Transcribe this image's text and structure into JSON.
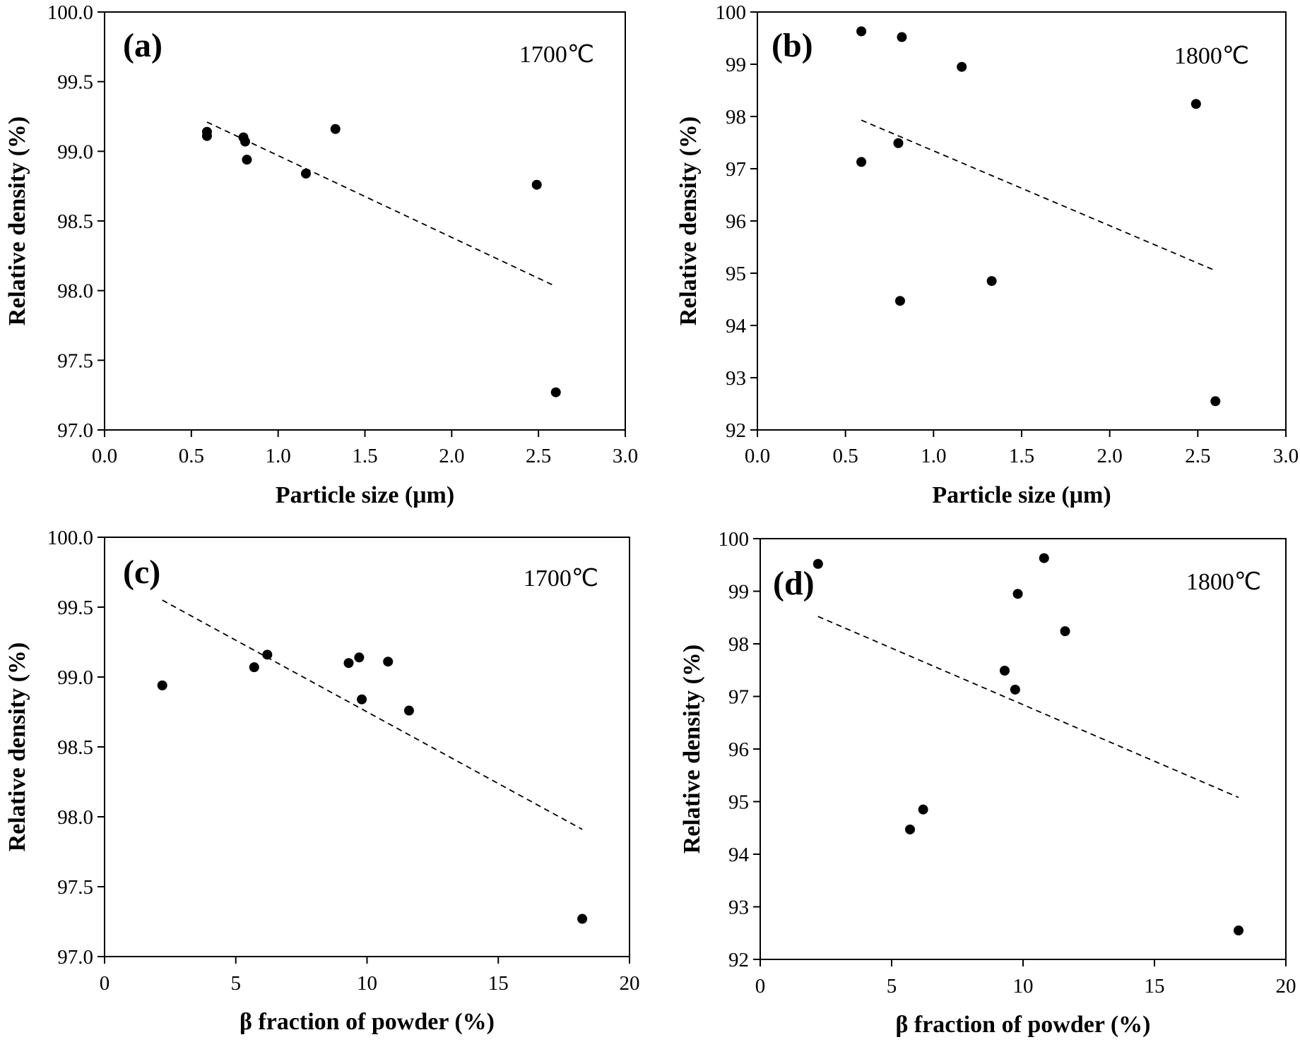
{
  "chart_data": [
    {
      "type": "scatter",
      "panel_label": "(a)",
      "annotation": "1700℃",
      "xlabel": "Particle size (μm)",
      "ylabel": "Relative density (%)",
      "xlim": [
        0,
        3
      ],
      "ylim": [
        97,
        100
      ],
      "xticks": [
        0,
        0.5,
        1,
        1.5,
        2,
        2.5,
        3
      ],
      "xtick_labels": [
        "0.0",
        "0.5",
        "1.0",
        "1.5",
        "2.0",
        "2.5",
        "3.0"
      ],
      "yticks": [
        97,
        97.5,
        98,
        98.5,
        99,
        99.5,
        100
      ],
      "ytick_labels": [
        "97.0",
        "97.5",
        "98.0",
        "98.5",
        "99.0",
        "99.5",
        "100.0"
      ],
      "points": [
        {
          "x": 0.59,
          "y": 99.14
        },
        {
          "x": 0.59,
          "y": 99.11
        },
        {
          "x": 0.8,
          "y": 99.1
        },
        {
          "x": 0.81,
          "y": 99.07
        },
        {
          "x": 0.82,
          "y": 98.94
        },
        {
          "x": 1.16,
          "y": 98.84
        },
        {
          "x": 1.33,
          "y": 99.16
        },
        {
          "x": 2.49,
          "y": 98.76
        },
        {
          "x": 2.6,
          "y": 97.27
        }
      ],
      "trendline": {
        "x": [
          0.59,
          2.6
        ],
        "y": [
          99.21,
          98.03
        ],
        "style": "dashed"
      }
    },
    {
      "type": "scatter",
      "panel_label": "(b)",
      "annotation": "1800℃",
      "xlabel": "Particle size (μm)",
      "ylabel": "Relative density (%)",
      "xlim": [
        0,
        3
      ],
      "ylim": [
        92,
        100
      ],
      "xticks": [
        0,
        0.5,
        1,
        1.5,
        2,
        2.5,
        3
      ],
      "xtick_labels": [
        "0.0",
        "0.5",
        "1.0",
        "1.5",
        "2.0",
        "2.5",
        "3.0"
      ],
      "yticks": [
        92,
        93,
        94,
        95,
        96,
        97,
        98,
        99,
        100
      ],
      "ytick_labels": [
        "92",
        "93",
        "94",
        "95",
        "96",
        "97",
        "98",
        "99",
        "100"
      ],
      "points": [
        {
          "x": 0.59,
          "y": 99.63
        },
        {
          "x": 0.59,
          "y": 97.13
        },
        {
          "x": 0.8,
          "y": 97.49
        },
        {
          "x": 0.81,
          "y": 94.47
        },
        {
          "x": 0.82,
          "y": 99.52
        },
        {
          "x": 1.16,
          "y": 98.95
        },
        {
          "x": 1.33,
          "y": 94.85
        },
        {
          "x": 2.49,
          "y": 98.24
        },
        {
          "x": 2.6,
          "y": 92.55
        }
      ],
      "trendline": {
        "x": [
          0.59,
          2.6
        ],
        "y": [
          97.93,
          95.05
        ],
        "style": "dashed"
      }
    },
    {
      "type": "scatter",
      "panel_label": "(c)",
      "annotation": "1700℃",
      "xlabel": "β fraction of powder (%)",
      "ylabel": "Relative density (%)",
      "xlim": [
        0,
        20
      ],
      "ylim": [
        97,
        100
      ],
      "xticks": [
        0,
        5,
        10,
        15,
        20
      ],
      "xtick_labels": [
        "0",
        "5",
        "10",
        "15",
        "20"
      ],
      "yticks": [
        97,
        97.5,
        98,
        98.5,
        99,
        99.5,
        100
      ],
      "ytick_labels": [
        "97.0",
        "97.5",
        "98.0",
        "98.5",
        "99.0",
        "99.5",
        "100.0"
      ],
      "points": [
        {
          "x": 2.2,
          "y": 98.94
        },
        {
          "x": 5.7,
          "y": 99.07
        },
        {
          "x": 6.2,
          "y": 99.16
        },
        {
          "x": 9.3,
          "y": 99.1
        },
        {
          "x": 9.7,
          "y": 99.14
        },
        {
          "x": 9.8,
          "y": 98.84
        },
        {
          "x": 10.8,
          "y": 99.11
        },
        {
          "x": 11.6,
          "y": 98.76
        },
        {
          "x": 18.2,
          "y": 97.27
        }
      ],
      "trendline": {
        "x": [
          2.2,
          18.2
        ],
        "y": [
          99.55,
          97.91
        ],
        "style": "dashed"
      }
    },
    {
      "type": "scatter",
      "panel_label": "(d)",
      "annotation": "1800℃",
      "xlabel": "β fraction of powder (%)",
      "ylabel": "Relative density (%)",
      "xlim": [
        0,
        20
      ],
      "ylim": [
        92,
        100
      ],
      "xticks": [
        0,
        5,
        10,
        15,
        20
      ],
      "xtick_labels": [
        "0",
        "5",
        "10",
        "15",
        "20"
      ],
      "yticks": [
        92,
        93,
        94,
        95,
        96,
        97,
        98,
        99,
        100
      ],
      "ytick_labels": [
        "92",
        "93",
        "94",
        "95",
        "96",
        "97",
        "98",
        "99",
        "100"
      ],
      "points": [
        {
          "x": 2.2,
          "y": 99.52
        },
        {
          "x": 5.7,
          "y": 94.47
        },
        {
          "x": 6.2,
          "y": 94.85
        },
        {
          "x": 9.3,
          "y": 97.49
        },
        {
          "x": 9.7,
          "y": 97.13
        },
        {
          "x": 9.8,
          "y": 98.95
        },
        {
          "x": 10.8,
          "y": 99.63
        },
        {
          "x": 11.6,
          "y": 98.24
        },
        {
          "x": 18.2,
          "y": 92.55
        }
      ],
      "trendline": {
        "x": [
          2.2,
          18.2
        ],
        "y": [
          98.52,
          95.08
        ],
        "style": "dashed"
      }
    }
  ]
}
